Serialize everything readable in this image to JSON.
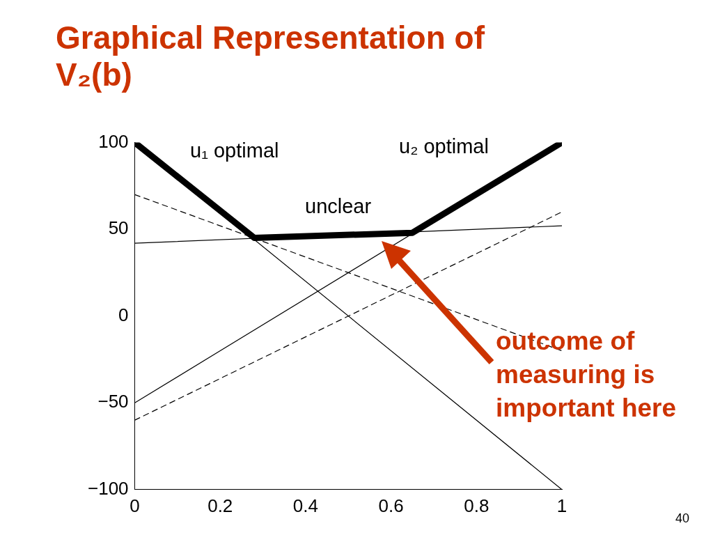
{
  "chart_data": {
    "type": "line",
    "title": "Graphical Representation of V₂(b)",
    "x": [
      0,
      1
    ],
    "series": [
      {
        "color": "#000000",
        "x": [
          0,
          0.28,
          0.65,
          1
        ],
        "values": [
          100,
          45,
          48,
          100
        ],
        "line_style": "solid"
      },
      {
        "color": "#000000",
        "values": [
          100,
          -100
        ],
        "line_style": "solid"
      },
      {
        "color": "#000000",
        "values": [
          -50,
          100
        ],
        "line_style": "solid"
      },
      {
        "color": "#000000",
        "values": [
          42,
          52
        ],
        "line_style": "solid"
      },
      {
        "color": "#000000",
        "values": [
          70,
          -20
        ],
        "line_style": "dashed"
      },
      {
        "color": "#000000",
        "values": [
          -60,
          60
        ],
        "line_style": "dashed"
      }
    ],
    "xlim": [
      0,
      1
    ],
    "xticks": [
      0,
      0.2,
      0.4,
      0.6,
      0.8,
      1
    ],
    "ylim": [
      -100,
      100
    ],
    "yticks": [
      {
        "value": -100,
        "label": "−100"
      },
      {
        "value": -50,
        "label": "−50"
      },
      0,
      50,
      100
    ],
    "grid": false,
    "legend": false,
    "marker": "none",
    "annotations": [
      "u₁ optimal",
      "u₂ optimal",
      "unclear",
      "outcome of measuring is important here",
      "40"
    ]
  }
}
